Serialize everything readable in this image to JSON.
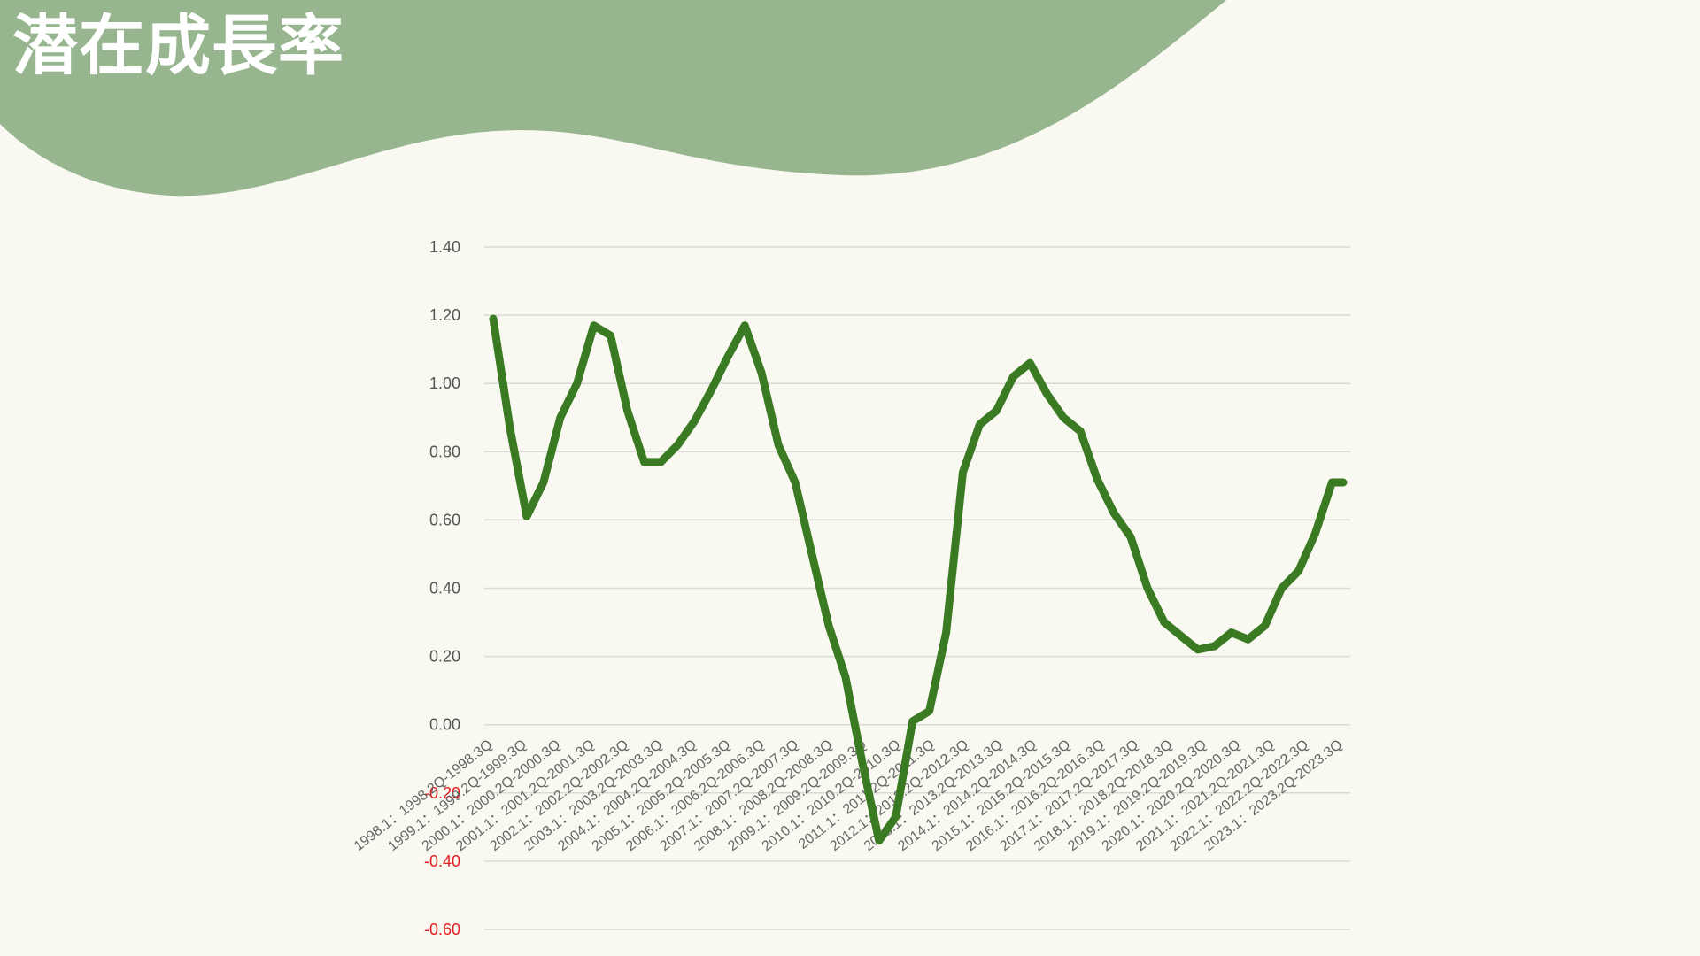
{
  "header": {
    "title": "潜在成長率",
    "accent_color": "#97b690"
  },
  "chart_data": {
    "type": "line",
    "title": "",
    "xlabel": "",
    "ylabel": "",
    "ylim": [
      -0.6,
      1.4
    ],
    "grid": true,
    "y_ticks": [
      "1.40",
      "1.20",
      "1.00",
      "0.80",
      "0.60",
      "0.40",
      "0.20",
      "0.00",
      "-0.20",
      "-0.40",
      "-0.60"
    ],
    "y_tick_values": [
      1.4,
      1.2,
      1.0,
      0.8,
      0.6,
      0.4,
      0.2,
      0.0,
      -0.2,
      -0.4,
      -0.6
    ],
    "negative_tick_color": "#e02020",
    "positive_tick_color": "#555555",
    "line_color": "#3a7a23",
    "categories": [
      "1998.1：1998.2Q-1998.3Q",
      "1999.1：1999.2Q-1999.3Q",
      "2000.1：2000.2Q-2000.3Q",
      "2001.1：2001.2Q-2001.3Q",
      "2002.1：2002.2Q-2002.3Q",
      "2003.1：2003.2Q-2003.3Q",
      "2004.1：2004.2Q-2004.3Q",
      "2005.1：2005.2Q-2005.3Q",
      "2006.1：2006.2Q-2006.3Q",
      "2007.1：2007.2Q-2007.3Q",
      "2008.1：2008.2Q-2008.3Q",
      "2009.1：2009.2Q-2009.3Q",
      "2010.1：2010.2Q-2010.3Q",
      "2011.1：2011.2Q-2011.3Q",
      "2012.1：2012.2Q-2012.3Q",
      "2013.1：2013.2Q-2013.3Q",
      "2014.1：2014.2Q-2014.3Q",
      "2015.1：2015.2Q-2015.3Q",
      "2016.1：2016.2Q-2016.3Q",
      "2017.1：2017.2Q-2017.3Q",
      "2018.1：2018.2Q-2018.3Q",
      "2019.1：2019.2Q-2019.3Q",
      "2020.1：2020.2Q-2020.3Q",
      "2021.1：2021.2Q-2021.3Q",
      "2022.1：2022.2Q-2022.3Q",
      "2023.1：2023.2Q-2023.3Q"
    ],
    "x_start": 1998.0,
    "x_end": 2023.333,
    "x": [
      1998.0,
      1998.5,
      1999.0,
      1999.5,
      2000.0,
      2000.5,
      2001.0,
      2001.5,
      2002.0,
      2002.5,
      2003.0,
      2003.5,
      2004.0,
      2004.5,
      2005.0,
      2005.5,
      2006.0,
      2006.5,
      2007.0,
      2007.5,
      2008.0,
      2008.5,
      2009.0,
      2009.5,
      2010.0,
      2010.5,
      2011.0,
      2011.5,
      2012.0,
      2012.5,
      2013.0,
      2013.5,
      2014.0,
      2014.5,
      2015.0,
      2015.5,
      2016.0,
      2016.5,
      2017.0,
      2017.5,
      2018.0,
      2018.5,
      2019.0,
      2019.5,
      2020.0,
      2020.5,
      2021.0,
      2021.5,
      2022.0,
      2022.5,
      2023.0,
      2023.333
    ],
    "values": [
      1.19,
      0.87,
      0.61,
      0.71,
      0.9,
      1.0,
      1.17,
      1.14,
      0.92,
      0.77,
      0.77,
      0.82,
      0.89,
      0.98,
      1.08,
      1.17,
      1.03,
      0.82,
      0.71,
      0.5,
      0.29,
      0.14,
      -0.11,
      -0.34,
      -0.27,
      0.01,
      0.04,
      0.27,
      0.74,
      0.88,
      0.92,
      1.02,
      1.06,
      0.97,
      0.9,
      0.86,
      0.72,
      0.62,
      0.55,
      0.4,
      0.3,
      0.26,
      0.22,
      0.23,
      0.27,
      0.25,
      0.29,
      0.4,
      0.45,
      0.56,
      0.71,
      0.71
    ]
  }
}
